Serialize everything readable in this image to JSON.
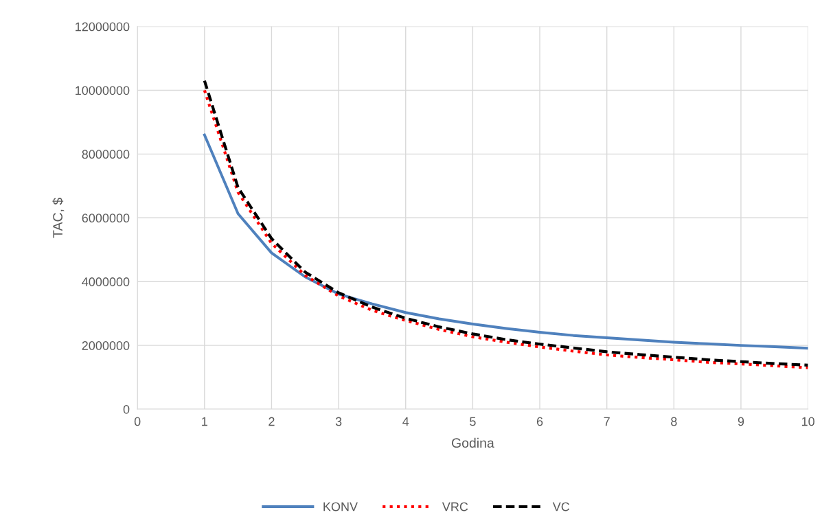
{
  "chart_data": {
    "type": "line",
    "xlabel": "Godina",
    "ylabel": "TAC, $",
    "x": [
      1,
      1.5,
      2,
      2.5,
      3,
      3.5,
      4,
      4.5,
      5,
      5.5,
      6,
      6.5,
      7,
      7.5,
      8,
      8.5,
      9,
      9.5,
      10
    ],
    "series": [
      {
        "name": "KONV",
        "color": "#4f81bd",
        "line_style": "solid",
        "values": [
          8600000,
          6130000,
          4900000,
          4150000,
          3610000,
          3300000,
          3030000,
          2830000,
          2670000,
          2530000,
          2410000,
          2310000,
          2240000,
          2170000,
          2100000,
          2050000,
          2000000,
          1960000,
          1910000
        ]
      },
      {
        "name": "VRC",
        "color": "#ff0000",
        "line_style": "dotted",
        "values": [
          10000000,
          6800000,
          5200000,
          4200000,
          3550000,
          3100000,
          2780000,
          2500000,
          2270000,
          2100000,
          1950000,
          1820000,
          1700000,
          1620000,
          1550000,
          1470000,
          1420000,
          1360000,
          1300000
        ]
      },
      {
        "name": "VC",
        "color": "#000000",
        "line_style": "dashed",
        "values": [
          10300000,
          6950000,
          5350000,
          4300000,
          3650000,
          3200000,
          2850000,
          2580000,
          2360000,
          2180000,
          2040000,
          1920000,
          1800000,
          1710000,
          1630000,
          1550000,
          1490000,
          1430000,
          1380000
        ]
      }
    ],
    "xlim": [
      0,
      10
    ],
    "xticks": [
      0,
      1,
      2,
      3,
      4,
      5,
      6,
      7,
      8,
      9,
      10
    ],
    "ylim": [
      0,
      12000000
    ],
    "yticks": [
      0,
      2000000,
      4000000,
      6000000,
      8000000,
      10000000,
      12000000
    ],
    "grid": true,
    "legend": "bottom",
    "marker": "none"
  }
}
